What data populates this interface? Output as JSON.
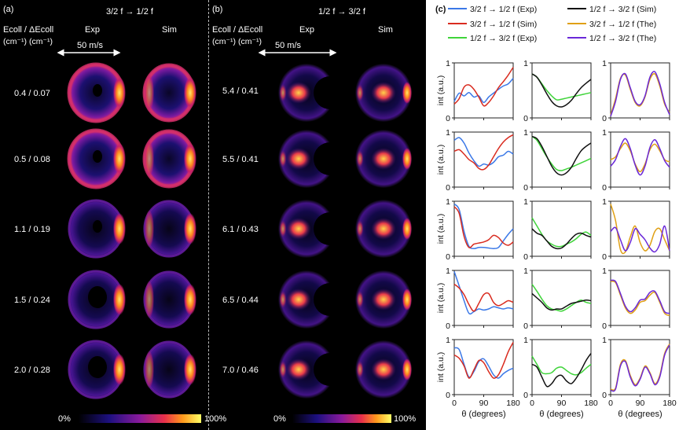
{
  "panel_a": {
    "tag": "(a)",
    "title": "3/2 f → 1/2 f",
    "energy_header": "Ecoll / ΔEcoll",
    "units": "(cm⁻¹)  (cm⁻¹)",
    "col_exp": "Exp",
    "col_sim": "Sim",
    "scale": "50 m/s",
    "rows": [
      "0.4 / 0.07",
      "0.5 / 0.08",
      "1.1 / 0.19",
      "1.5 / 0.24",
      "2.0 / 0.28"
    ],
    "colorbar_min": "0%",
    "colorbar_max": "100%"
  },
  "panel_b": {
    "tag": "(b)",
    "title": "1/2 f → 3/2 f",
    "energy_header": "Ecoll / ΔEcoll",
    "units": "(cm⁻¹)  (cm⁻¹)",
    "col_exp": "Exp",
    "col_sim": "Sim",
    "scale": "50 m/s",
    "rows": [
      "5.4 / 0.41",
      "5.5 / 0.41",
      "6.1 / 0.43",
      "6.5 / 0.44",
      "7.0 / 0.46"
    ],
    "colorbar_min": "0%",
    "colorbar_max": "100%"
  },
  "colors": {
    "exp_32_12": "#3b78e7",
    "sim_32_12": "#d92b1f",
    "exp_12_32": "#3fd43a",
    "sim_12_32": "#111111",
    "the_32_12": "#e0a015",
    "the_12_32": "#6a28d8"
  },
  "chart_data": {
    "type": "line",
    "tag": "(c)",
    "legend": [
      "3/2 f → 1/2 f (Exp)",
      "1/2 f → 3/2 f (Sim)",
      "3/2 f → 1/2 f (Sim)",
      "3/2 f → 1/2 f (The)",
      "1/2 f → 3/2 f (Exp)",
      "1/2 f → 3/2 f (The)"
    ],
    "xlabel": "θ (degrees)",
    "ylabel": "int (a.u.)",
    "xlim": [
      0,
      180
    ],
    "ylim": [
      0,
      1
    ],
    "xticks": [
      "0",
      "90",
      "180"
    ],
    "yticks": [
      "0",
      "1"
    ],
    "x": [
      0,
      15,
      30,
      45,
      60,
      75,
      90,
      105,
      120,
      135,
      150,
      165,
      180
    ],
    "rows": [
      {
        "energy_3212": "0.4 / 0.07",
        "energy_1232": "5.4 / 0.41",
        "col1": {
          "exp": [
            0.3,
            0.45,
            0.4,
            0.46,
            0.38,
            0.4,
            0.28,
            0.38,
            0.45,
            0.52,
            0.58,
            0.62,
            0.72
          ],
          "sim": [
            0.25,
            0.35,
            0.56,
            0.6,
            0.52,
            0.38,
            0.22,
            0.28,
            0.4,
            0.55,
            0.66,
            0.78,
            0.92
          ]
        },
        "col2": {
          "exp": [
            0.8,
            0.74,
            0.62,
            0.5,
            0.4,
            0.33,
            0.34,
            0.36,
            0.38,
            0.4,
            0.42,
            0.44,
            0.46
          ],
          "sim": [
            0.8,
            0.74,
            0.6,
            0.44,
            0.3,
            0.22,
            0.2,
            0.24,
            0.32,
            0.44,
            0.55,
            0.63,
            0.7
          ]
        },
        "col3": {
          "the_3212": [
            0.05,
            0.35,
            0.72,
            0.78,
            0.52,
            0.28,
            0.22,
            0.38,
            0.7,
            0.8,
            0.58,
            0.25,
            0.1
          ],
          "the_1232": [
            0.03,
            0.3,
            0.7,
            0.8,
            0.55,
            0.3,
            0.24,
            0.4,
            0.74,
            0.84,
            0.62,
            0.28,
            0.06
          ]
        }
      },
      {
        "energy_3212": "0.5 / 0.08",
        "energy_1232": "5.5 / 0.41",
        "col1": {
          "exp": [
            0.85,
            0.9,
            0.8,
            0.62,
            0.48,
            0.38,
            0.42,
            0.4,
            0.45,
            0.55,
            0.58,
            0.65,
            0.6
          ],
          "sim": [
            0.65,
            0.68,
            0.6,
            0.5,
            0.44,
            0.34,
            0.32,
            0.4,
            0.55,
            0.7,
            0.82,
            0.9,
            0.95
          ]
        },
        "col2": {
          "exp": [
            0.92,
            0.85,
            0.7,
            0.55,
            0.42,
            0.32,
            0.3,
            0.33,
            0.36,
            0.4,
            0.44,
            0.48,
            0.52
          ],
          "sim": [
            0.92,
            0.88,
            0.74,
            0.56,
            0.38,
            0.26,
            0.22,
            0.26,
            0.36,
            0.52,
            0.66,
            0.74,
            0.8
          ]
        },
        "col3": {
          "the_3212": [
            0.5,
            0.55,
            0.7,
            0.8,
            0.66,
            0.42,
            0.28,
            0.42,
            0.68,
            0.78,
            0.66,
            0.5,
            0.46
          ],
          "the_1232": [
            0.38,
            0.5,
            0.74,
            0.88,
            0.7,
            0.4,
            0.22,
            0.38,
            0.72,
            0.86,
            0.7,
            0.48,
            0.36
          ]
        }
      },
      {
        "energy_3212": "1.1 / 0.19",
        "energy_1232": "6.1 / 0.43",
        "col1": {
          "exp": [
            0.95,
            0.85,
            0.45,
            0.18,
            0.14,
            0.16,
            0.16,
            0.15,
            0.14,
            0.16,
            0.28,
            0.4,
            0.5
          ],
          "sim": [
            0.9,
            0.78,
            0.36,
            0.16,
            0.22,
            0.24,
            0.26,
            0.3,
            0.38,
            0.34,
            0.24,
            0.2,
            0.26
          ]
        },
        "col2": {
          "exp": [
            0.7,
            0.55,
            0.4,
            0.28,
            0.22,
            0.18,
            0.18,
            0.22,
            0.26,
            0.32,
            0.4,
            0.44,
            0.38
          ],
          "sim": [
            0.5,
            0.42,
            0.38,
            0.28,
            0.18,
            0.14,
            0.15,
            0.22,
            0.32,
            0.4,
            0.42,
            0.38,
            0.35
          ]
        },
        "col3": {
          "the_3212": [
            0.95,
            0.65,
            0.12,
            0.08,
            0.35,
            0.55,
            0.25,
            0.1,
            0.2,
            0.45,
            0.5,
            0.3,
            0.1
          ],
          "the_1232": [
            0.45,
            0.52,
            0.3,
            0.1,
            0.25,
            0.5,
            0.4,
            0.3,
            0.15,
            0.08,
            0.22,
            0.55,
            0.1
          ]
        }
      },
      {
        "energy_3212": "1.5 / 0.24",
        "energy_1232": "6.5 / 0.44",
        "col1": {
          "exp": [
            0.98,
            0.72,
            0.45,
            0.22,
            0.25,
            0.3,
            0.28,
            0.3,
            0.34,
            0.32,
            0.3,
            0.32,
            0.3
          ],
          "sim": [
            0.75,
            0.68,
            0.56,
            0.38,
            0.26,
            0.4,
            0.56,
            0.58,
            0.42,
            0.36,
            0.4,
            0.45,
            0.42
          ]
        },
        "col2": {
          "exp": [
            0.75,
            0.62,
            0.48,
            0.36,
            0.3,
            0.28,
            0.26,
            0.3,
            0.36,
            0.42,
            0.46,
            0.42,
            0.4
          ],
          "sim": [
            0.58,
            0.5,
            0.42,
            0.32,
            0.28,
            0.3,
            0.3,
            0.35,
            0.4,
            0.42,
            0.44,
            0.46,
            0.45
          ]
        },
        "col3": {
          "the_3212": [
            0.8,
            0.78,
            0.55,
            0.32,
            0.22,
            0.28,
            0.42,
            0.45,
            0.55,
            0.6,
            0.42,
            0.22,
            0.18
          ],
          "the_1232": [
            0.82,
            0.8,
            0.58,
            0.35,
            0.25,
            0.32,
            0.46,
            0.48,
            0.6,
            0.62,
            0.45,
            0.25,
            0.22
          ]
        }
      },
      {
        "energy_3212": "2.0 / 0.28",
        "energy_1232": "7.0 / 0.46",
        "col1": {
          "exp": [
            0.85,
            0.82,
            0.55,
            0.32,
            0.42,
            0.6,
            0.65,
            0.52,
            0.36,
            0.3,
            0.38,
            0.44,
            0.48
          ],
          "sim": [
            0.72,
            0.66,
            0.52,
            0.3,
            0.45,
            0.62,
            0.58,
            0.42,
            0.3,
            0.36,
            0.55,
            0.78,
            0.95
          ]
        },
        "col2": {
          "exp": [
            0.7,
            0.55,
            0.4,
            0.38,
            0.4,
            0.48,
            0.5,
            0.44,
            0.38,
            0.36,
            0.4,
            0.48,
            0.55
          ],
          "sim": [
            0.55,
            0.5,
            0.32,
            0.15,
            0.2,
            0.32,
            0.35,
            0.25,
            0.2,
            0.3,
            0.45,
            0.62,
            0.75
          ]
        },
        "col3": {
          "the_3212": [
            0.1,
            0.12,
            0.55,
            0.62,
            0.35,
            0.18,
            0.3,
            0.52,
            0.4,
            0.2,
            0.35,
            0.75,
            0.92
          ],
          "the_1232": [
            0.08,
            0.1,
            0.52,
            0.6,
            0.32,
            0.16,
            0.28,
            0.5,
            0.38,
            0.18,
            0.32,
            0.72,
            0.9
          ]
        }
      }
    ]
  }
}
